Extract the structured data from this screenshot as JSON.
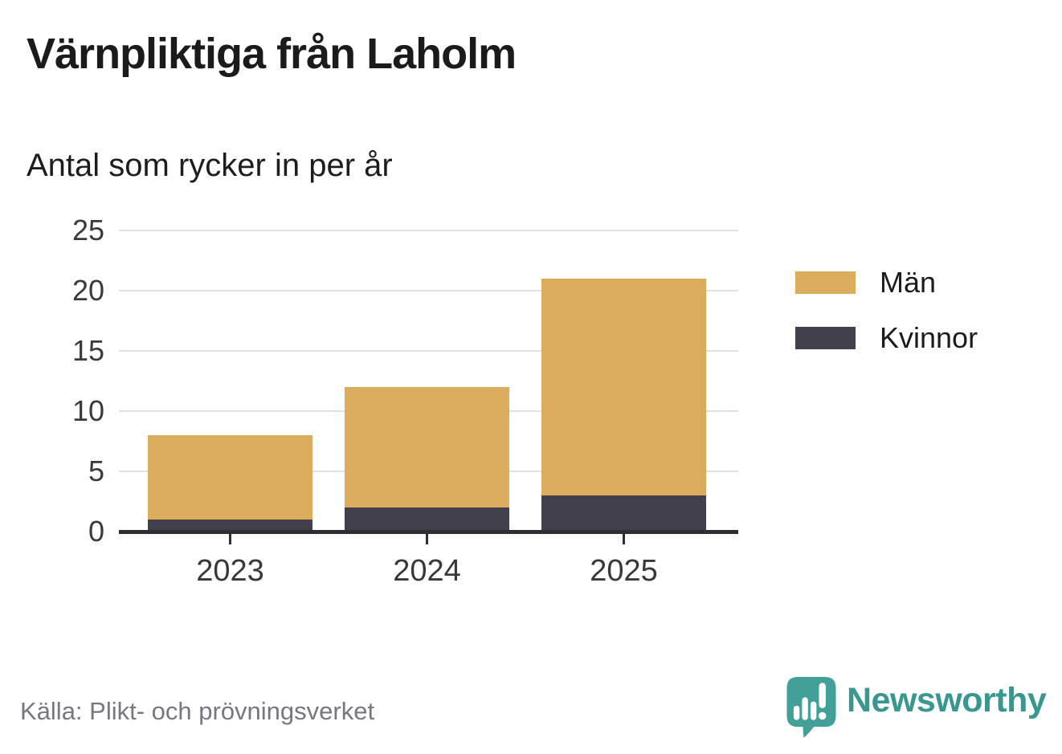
{
  "header": {
    "title": "Värnpliktiga från Laholm",
    "subtitle": "Antal som rycker in per år"
  },
  "chart_data": {
    "type": "bar",
    "stacked": true,
    "title": "Värnpliktiga från Laholm",
    "subtitle": "Antal som rycker in per år",
    "categories": [
      "2023",
      "2024",
      "2025"
    ],
    "series": [
      {
        "name": "Kvinnor",
        "color": "#42404c",
        "values": [
          1,
          2,
          3
        ]
      },
      {
        "name": "Män",
        "color": "#dbac5c",
        "values": [
          7,
          10,
          18
        ]
      }
    ],
    "stack_order_bottom_to_top": [
      "Kvinnor",
      "Män"
    ],
    "totals": [
      8,
      12,
      21
    ],
    "xlabel": "",
    "ylabel": "",
    "yticks": [
      0,
      5,
      10,
      15,
      20,
      25
    ],
    "ylim": [
      0,
      25
    ],
    "grid": true,
    "legend_position": "right"
  },
  "legend": {
    "items": [
      {
        "label": "Män",
        "color": "#dbac5c"
      },
      {
        "label": "Kvinnor",
        "color": "#42404c"
      }
    ]
  },
  "footer": {
    "source": "Källa: Plikt- och prövningsverket",
    "brand": "Newsworthy"
  },
  "colors": {
    "men": "#dbac5c",
    "women": "#42404c",
    "axis": "#2e2d33",
    "gridline": "#e1e1e1",
    "brand_teal": "#42a098",
    "brand_text": "#38978f"
  }
}
